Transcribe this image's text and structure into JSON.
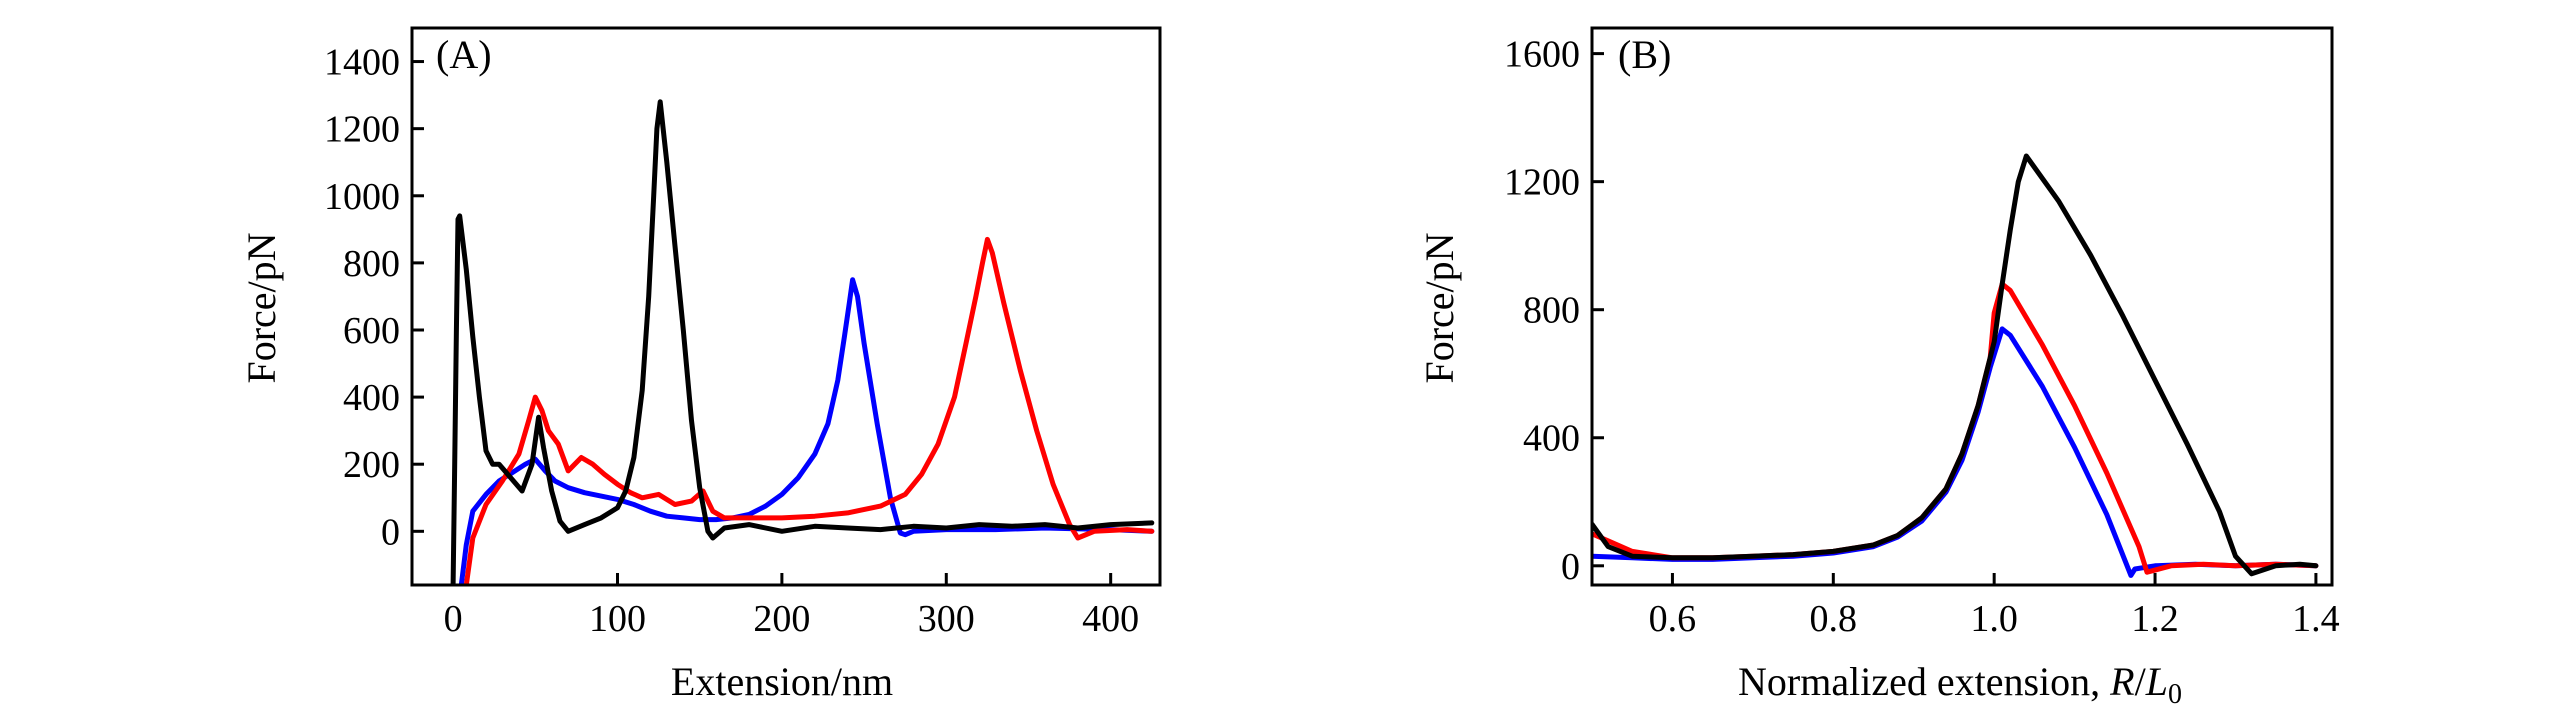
{
  "chart_data": [
    {
      "type": "line",
      "panel_label": "(A)",
      "xlabel": "Extension/nm",
      "ylabel": "Force/pN",
      "xlim": [
        -25,
        430
      ],
      "ylim": [
        -160,
        1500
      ],
      "xticks": [
        0,
        100,
        200,
        300,
        400
      ],
      "xtick_labels": [
        "0",
        "100",
        "200",
        "300",
        "400"
      ],
      "yticks": [
        0,
        200,
        400,
        600,
        800,
        1000,
        1200,
        1400
      ],
      "ytick_labels": [
        "0",
        "200",
        "400",
        "600",
        "800",
        "1000",
        "1200",
        "1400"
      ],
      "grid": false,
      "legend": "none",
      "series": [
        {
          "color": "#0000ff",
          "x": [
            5,
            8,
            12,
            20,
            28,
            36,
            44,
            50,
            56,
            62,
            70,
            80,
            90,
            100,
            110,
            120,
            130,
            140,
            150,
            160,
            170,
            180,
            190,
            200,
            210,
            220,
            228,
            234,
            238,
            241,
            243,
            246,
            250,
            258,
            266,
            272,
            275,
            280,
            300,
            330,
            360,
            400,
            425
          ],
          "y": [
            -160,
            -40,
            60,
            110,
            150,
            175,
            200,
            215,
            180,
            150,
            130,
            115,
            105,
            95,
            80,
            60,
            45,
            40,
            35,
            35,
            40,
            50,
            75,
            110,
            160,
            230,
            320,
            450,
            580,
            680,
            750,
            700,
            560,
            320,
            100,
            -5,
            -10,
            0,
            5,
            5,
            10,
            5,
            0
          ]
        },
        {
          "color": "#ff0000",
          "x": [
            8,
            12,
            20,
            30,
            40,
            46,
            50,
            54,
            58,
            64,
            70,
            78,
            85,
            92,
            100,
            108,
            115,
            125,
            135,
            145,
            152,
            158,
            165,
            180,
            200,
            220,
            240,
            260,
            275,
            285,
            295,
            305,
            312,
            318,
            322,
            325,
            328,
            335,
            345,
            355,
            365,
            375,
            380,
            390,
            410,
            425
          ],
          "y": [
            -160,
            -20,
            80,
            150,
            230,
            330,
            400,
            360,
            300,
            260,
            180,
            220,
            200,
            170,
            140,
            115,
            100,
            110,
            80,
            90,
            120,
            60,
            40,
            40,
            40,
            45,
            55,
            75,
            110,
            170,
            260,
            400,
            560,
            700,
            800,
            870,
            830,
            680,
            480,
            300,
            140,
            20,
            -20,
            0,
            5,
            0
          ]
        },
        {
          "color": "#000000",
          "x": [
            0,
            1,
            2,
            3,
            4,
            8,
            12,
            16,
            20,
            24,
            28,
            35,
            42,
            48,
            52,
            55,
            60,
            65,
            70,
            80,
            90,
            100,
            105,
            110,
            115,
            119,
            122,
            124,
            126,
            130,
            135,
            140,
            145,
            150,
            155,
            158,
            165,
            180,
            200,
            220,
            240,
            260,
            280,
            300,
            320,
            340,
            360,
            380,
            400,
            425
          ],
          "y": [
            -160,
            200,
            600,
            930,
            940,
            780,
            580,
            400,
            240,
            200,
            200,
            160,
            120,
            200,
            340,
            250,
            120,
            30,
            0,
            20,
            40,
            70,
            120,
            220,
            420,
            700,
            1000,
            1200,
            1280,
            1100,
            850,
            600,
            330,
            130,
            0,
            -20,
            10,
            20,
            0,
            15,
            10,
            5,
            15,
            10,
            20,
            15,
            20,
            10,
            20,
            25
          ]
        }
      ]
    },
    {
      "type": "line",
      "panel_label": "(B)",
      "xlabel_text": "Normalized extension, ",
      "xlabel_var_r": "R",
      "xlabel_slash": "/",
      "xlabel_var_l": "L",
      "xlabel_sub": "0",
      "ylabel": "Force/pN",
      "xlim": [
        0.5,
        1.42
      ],
      "ylim": [
        -60,
        1680
      ],
      "xticks": [
        0.6,
        0.8,
        1.0,
        1.2,
        1.4
      ],
      "xtick_labels": [
        "0.6",
        "0.8",
        "1.0",
        "1.2",
        "1.4"
      ],
      "yticks": [
        0,
        400,
        800,
        1200,
        1600
      ],
      "ytick_labels": [
        "0",
        "400",
        "800",
        "1200",
        "1600"
      ],
      "grid": false,
      "legend": "none",
      "series": [
        {
          "color": "#0000ff",
          "x": [
            0.5,
            0.55,
            0.6,
            0.65,
            0.7,
            0.75,
            0.8,
            0.85,
            0.88,
            0.91,
            0.94,
            0.96,
            0.98,
            0.995,
            1.01,
            1.02,
            1.06,
            1.1,
            1.14,
            1.17,
            1.175,
            1.2,
            1.25,
            1.3,
            1.35,
            1.4
          ],
          "y": [
            30,
            25,
            20,
            20,
            25,
            30,
            40,
            60,
            90,
            140,
            230,
            330,
            480,
            620,
            740,
            720,
            560,
            370,
            160,
            -30,
            -10,
            0,
            5,
            0,
            5,
            0
          ]
        },
        {
          "color": "#ff0000",
          "x": [
            0.5,
            0.55,
            0.6,
            0.65,
            0.7,
            0.75,
            0.8,
            0.85,
            0.88,
            0.91,
            0.94,
            0.96,
            0.98,
            0.995,
            1.0,
            1.01,
            1.02,
            1.06,
            1.1,
            1.14,
            1.18,
            1.19,
            1.22,
            1.26,
            1.3,
            1.35,
            1.4
          ],
          "y": [
            100,
            45,
            25,
            25,
            30,
            35,
            45,
            65,
            95,
            150,
            240,
            350,
            500,
            650,
            790,
            880,
            860,
            690,
            500,
            290,
            60,
            -20,
            0,
            5,
            0,
            5,
            0
          ]
        },
        {
          "color": "#000000",
          "x": [
            0.5,
            0.52,
            0.55,
            0.6,
            0.65,
            0.7,
            0.75,
            0.8,
            0.85,
            0.88,
            0.91,
            0.94,
            0.96,
            0.98,
            1.0,
            1.01,
            1.02,
            1.03,
            1.04,
            1.08,
            1.12,
            1.16,
            1.2,
            1.24,
            1.28,
            1.3,
            1.32,
            1.35,
            1.38,
            1.4
          ],
          "y": [
            130,
            60,
            30,
            25,
            25,
            30,
            35,
            45,
            65,
            95,
            150,
            240,
            350,
            500,
            700,
            880,
            1050,
            1200,
            1280,
            1140,
            970,
            780,
            580,
            380,
            170,
            30,
            -25,
            0,
            5,
            0
          ]
        }
      ]
    }
  ]
}
